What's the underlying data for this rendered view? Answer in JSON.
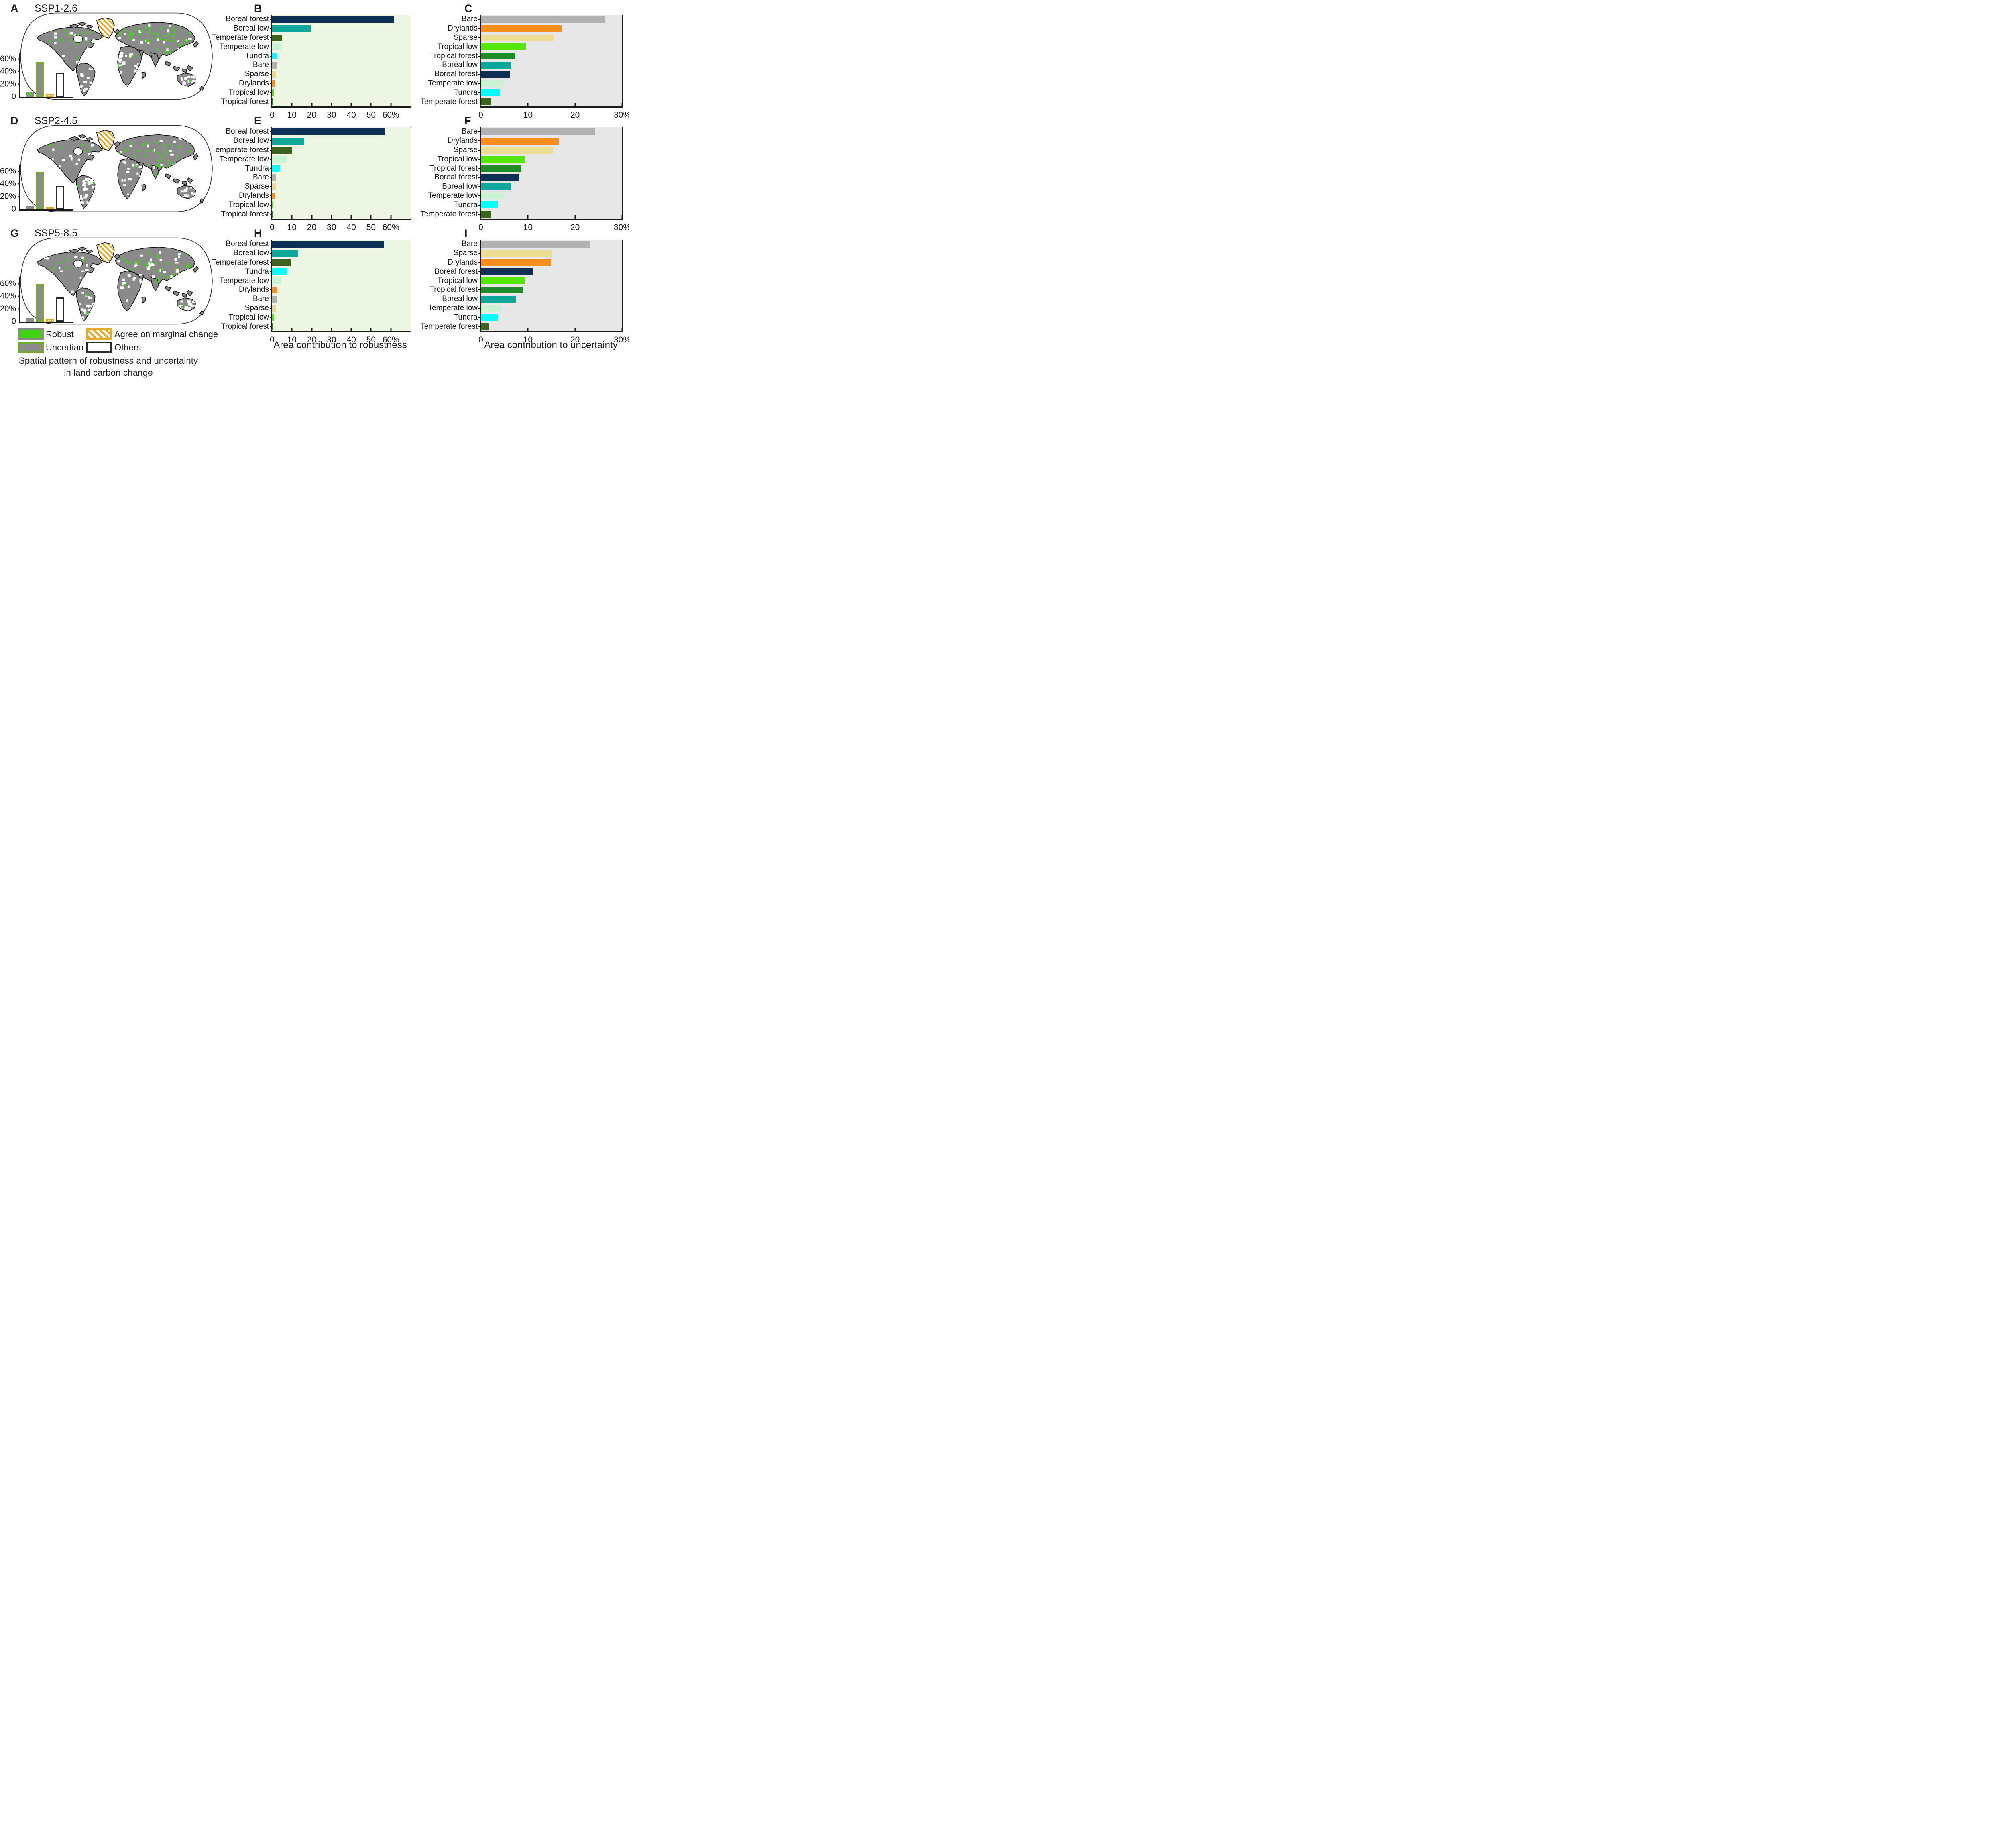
{
  "figure_caption": {
    "line1": "Spatial pattern of robustness and uncertainty",
    "line2": "in land carbon change"
  },
  "xaxis_titles": {
    "robustness": "Area contribution to robustness",
    "uncertainty": "Area contribution to uncertainty"
  },
  "legend": {
    "items": [
      {
        "label": "Robust",
        "swatch": "robust"
      },
      {
        "label": "Agree on marginal change",
        "swatch": "agree"
      },
      {
        "label": "Uncertian",
        "swatch": "uncertain"
      },
      {
        "label": "Others",
        "swatch": "others"
      }
    ]
  },
  "colors": {
    "robust_green": "#3fd40f",
    "uncertain_gray": "#8c8c8c",
    "uncertain_border_green": "#77ab2e",
    "agree_orange": "#e8a822",
    "others_border": "#2b2b2b",
    "map_land_gray": "#8a8a8a",
    "robustness_panel_bg": "#edf6e2",
    "uncertainty_panel_bg": "#e7e7e7",
    "categories": {
      "Boreal forest": "#0d3054",
      "Boreal low": "#0ea79b",
      "Temperate forest": "#3d641d",
      "Temperate low": "#c9f3d2",
      "Tundra": "#00ffff",
      "Bare": "#b2b2b2",
      "Sparse": "#ecdd92",
      "Drylands": "#fa8e1d",
      "Tropical low": "#55e704",
      "Tropical forest": "#1f8c25"
    }
  },
  "rows": [
    {
      "map_letter": "A",
      "title": "SSP1-2.6",
      "rob_letter": "B",
      "unc_letter": "C",
      "robust_chart": 0,
      "uncert_chart": 1,
      "inset_chart": 6
    },
    {
      "map_letter": "D",
      "title": "SSP2-4.5",
      "rob_letter": "E",
      "unc_letter": "F",
      "robust_chart": 2,
      "uncert_chart": 3,
      "inset_chart": 7
    },
    {
      "map_letter": "G",
      "title": "SSP5-8.5",
      "rob_letter": "H",
      "unc_letter": "I",
      "robust_chart": 4,
      "uncert_chart": 5,
      "inset_chart": 8
    }
  ],
  "chart_data": [
    {
      "id": "B",
      "type": "bar",
      "orientation": "horizontal",
      "categories": [
        "Boreal forest",
        "Boreal low",
        "Temperate forest",
        "Temperate low",
        "Tundra",
        "Bare",
        "Sparse",
        "Drylands",
        "Tropical low",
        "Tropical forest"
      ],
      "values": [
        61.5,
        19.5,
        5.0,
        4.6,
        2.6,
        2.4,
        2.0,
        1.5,
        0.7,
        0.6
      ],
      "xlim": [
        0,
        70
      ],
      "xticks": [
        "0",
        "10",
        "20",
        "30",
        "40",
        "50",
        "60%"
      ],
      "xlabel": "Area contribution to robustness",
      "grid": false,
      "legend_position": "none"
    },
    {
      "id": "C",
      "type": "bar",
      "orientation": "horizontal",
      "categories": [
        "Bare",
        "Drylands",
        "Sparse",
        "Tropical low",
        "Tropical forest",
        "Boreal low",
        "Boreal forest",
        "Temperate low",
        "Tundra",
        "Temperate forest"
      ],
      "values": [
        26.4,
        17.1,
        15.5,
        9.5,
        7.3,
        6.5,
        6.2,
        4.9,
        4.1,
        2.2
      ],
      "xlim": [
        0,
        30
      ],
      "xticks": [
        "0",
        "10",
        "20",
        "30%"
      ],
      "xlabel": "Area contribution to uncertainty",
      "grid": false,
      "legend_position": "none"
    },
    {
      "id": "E",
      "type": "bar",
      "orientation": "horizontal",
      "categories": [
        "Boreal forest",
        "Boreal low",
        "Temperate forest",
        "Temperate low",
        "Tundra",
        "Bare",
        "Sparse",
        "Drylands",
        "Tropical low",
        "Tropical forest"
      ],
      "values": [
        57.0,
        16.2,
        9.9,
        7.2,
        4.1,
        2.1,
        1.8,
        1.6,
        0.5,
        0.3
      ],
      "xlim": [
        0,
        70
      ],
      "xticks": [
        "0",
        "10",
        "20",
        "30",
        "40",
        "50",
        "60%"
      ],
      "xlabel": "Area contribution to robustness",
      "grid": false,
      "legend_position": "none"
    },
    {
      "id": "F",
      "type": "bar",
      "orientation": "horizontal",
      "categories": [
        "Bare",
        "Drylands",
        "Sparse",
        "Tropical low",
        "Tropical forest",
        "Boreal forest",
        "Boreal low",
        "Temperate low",
        "Tundra",
        "Temperate forest"
      ],
      "values": [
        24.2,
        16.5,
        15.3,
        9.4,
        8.6,
        8.1,
        6.5,
        4.9,
        3.6,
        2.2
      ],
      "xlim": [
        0,
        30
      ],
      "xticks": [
        "0",
        "10",
        "20",
        "30%"
      ],
      "xlabel": "Area contribution to uncertainty",
      "grid": false,
      "legend_position": "none"
    },
    {
      "id": "H",
      "type": "bar",
      "orientation": "horizontal",
      "categories": [
        "Boreal forest",
        "Boreal low",
        "Temperate forest",
        "Tundra",
        "Temperate low",
        "Drylands",
        "Bare",
        "Sparse",
        "Tropical low",
        "Tropical forest"
      ],
      "values": [
        56.4,
        13.2,
        9.5,
        7.7,
        4.8,
        2.6,
        2.4,
        1.9,
        1.1,
        0.5
      ],
      "xlim": [
        0,
        70
      ],
      "xticks": [
        "0",
        "10",
        "20",
        "30",
        "40",
        "50",
        "60%"
      ],
      "xlabel": "Area contribution to robustness",
      "grid": false,
      "legend_position": "none"
    },
    {
      "id": "I",
      "type": "bar",
      "orientation": "horizontal",
      "categories": [
        "Bare",
        "Sparse",
        "Drylands",
        "Boreal forest",
        "Tropical low",
        "Tropical forest",
        "Boreal low",
        "Temperate low",
        "Tundra",
        "Temperate forest"
      ],
      "values": [
        23.3,
        15.0,
        14.9,
        11.0,
        9.3,
        9.0,
        7.4,
        4.3,
        3.7,
        1.6
      ],
      "xlim": [
        0,
        30
      ],
      "xticks": [
        "0",
        "10",
        "20",
        "30%"
      ],
      "xlabel": "Area contribution to uncertainty",
      "grid": false,
      "legend_position": "none"
    },
    {
      "id": "A-inset",
      "type": "bar",
      "orientation": "vertical",
      "categories": [
        "Robust",
        "Uncertian",
        "Agree on marginal change",
        "Others"
      ],
      "values": [
        8,
        55,
        2.5,
        38
      ],
      "ylim": [
        0,
        70
      ],
      "yticks": [
        "0",
        "20%",
        "40%",
        "60%"
      ],
      "grid": false,
      "legend_position": "none"
    },
    {
      "id": "D-inset",
      "type": "bar",
      "orientation": "vertical",
      "categories": [
        "Robust",
        "Uncertian",
        "Agree on marginal change",
        "Others"
      ],
      "values": [
        5,
        59,
        2,
        36
      ],
      "ylim": [
        0,
        70
      ],
      "yticks": [
        "0",
        "20%",
        "40%",
        "60%"
      ],
      "grid": false,
      "legend_position": "none"
    },
    {
      "id": "G-inset",
      "type": "bar",
      "orientation": "vertical",
      "categories": [
        "Robust",
        "Uncertian",
        "Agree on marginal change",
        "Others"
      ],
      "values": [
        3.5,
        59,
        2,
        38
      ],
      "ylim": [
        0,
        70
      ],
      "yticks": [
        "0",
        "20%",
        "40%",
        "60%"
      ],
      "grid": false,
      "legend_position": "none"
    }
  ]
}
